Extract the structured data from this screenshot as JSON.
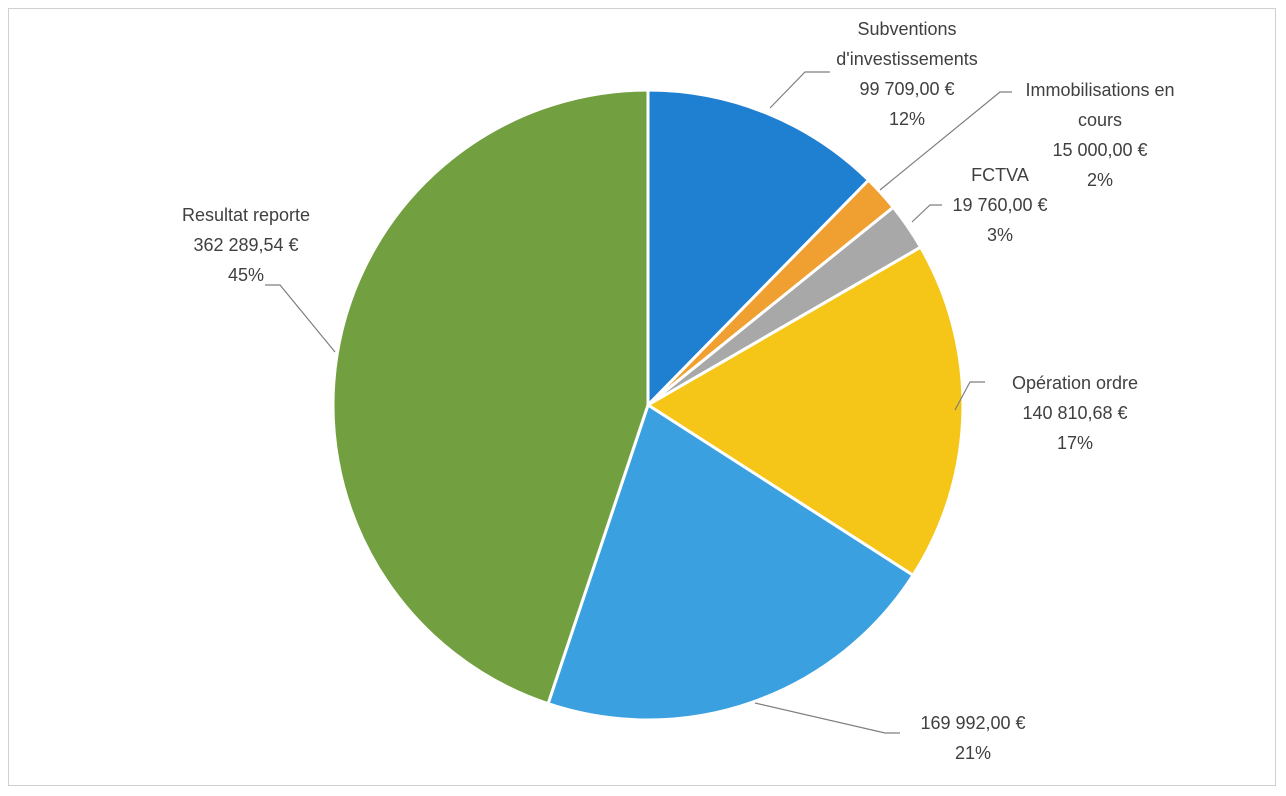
{
  "chart_data": {
    "type": "pie",
    "categories": [
      "Subventions d'investissements",
      "Immobilisations en cours",
      "FCTVA",
      "Opération ordre",
      null,
      "Resultat reporte"
    ],
    "values": [
      99709.0,
      15000.0,
      19760.0,
      140810.68,
      169992.0,
      362289.54
    ],
    "value_labels": [
      "99 709,00 €",
      "15 000,00 €",
      "19 760,00 €",
      "140 810,68 €",
      "169 992,00 €",
      "362 289,54 €"
    ],
    "percents": [
      12,
      2,
      3,
      17,
      21,
      45
    ],
    "percent_labels": [
      "12%",
      "2%",
      "3%",
      "17%",
      "21%",
      "45%"
    ],
    "colors": [
      "#1f7fd0",
      "#f0a030",
      "#a8a8a8",
      "#f5c518",
      "#3aa0e0",
      "#72a040"
    ]
  }
}
